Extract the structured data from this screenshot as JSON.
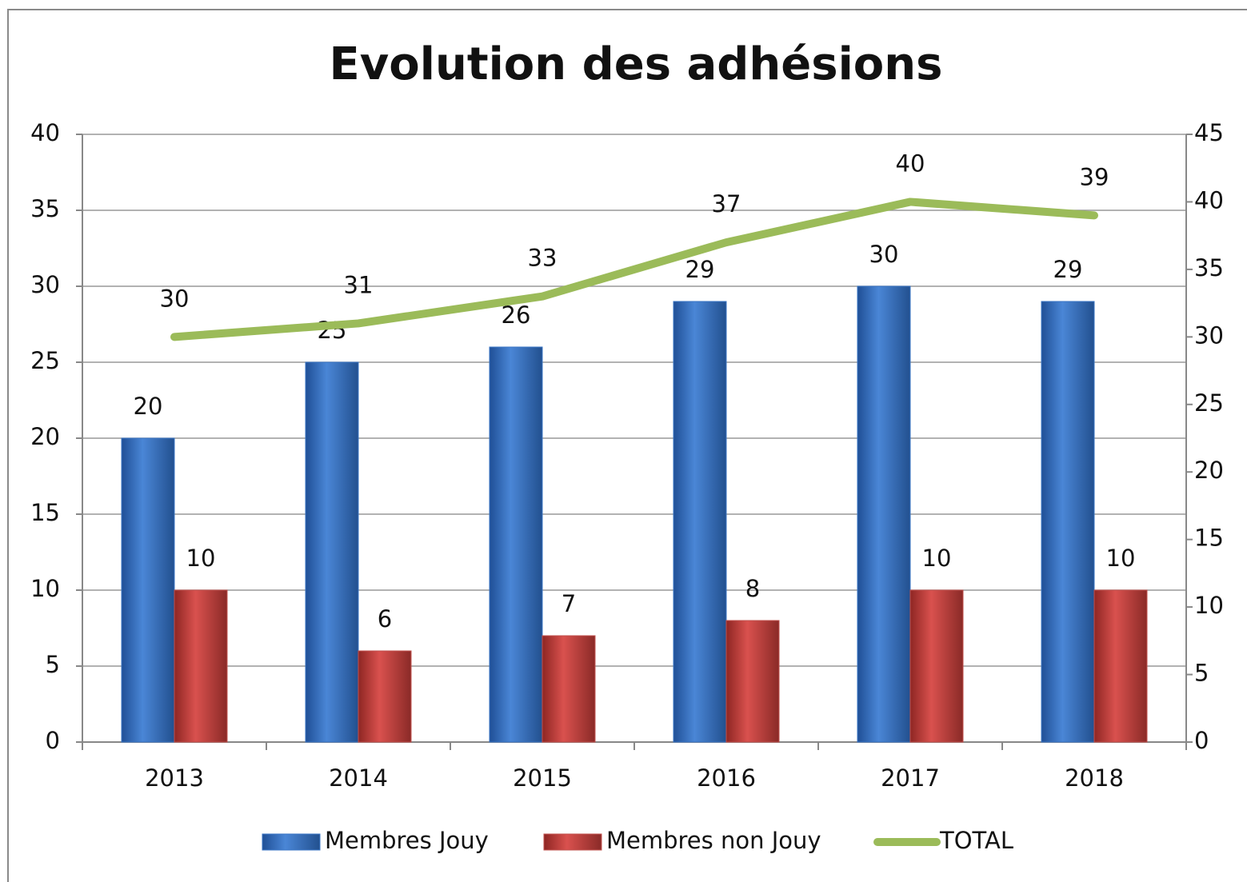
{
  "chart_data": {
    "type": "bar",
    "title": "Evolution des adhésions",
    "categories": [
      "2013",
      "2014",
      "2015",
      "2016",
      "2017",
      "2018"
    ],
    "series": [
      {
        "name": "Membres Jouy",
        "color": "#3a75c4",
        "values": [
          20,
          25,
          26,
          29,
          30,
          29
        ]
      },
      {
        "name": "Membres non Jouy",
        "color": "#c0504d",
        "values": [
          10,
          6,
          7,
          8,
          10,
          10
        ]
      },
      {
        "name": "TOTAL",
        "color": "#9bbb59",
        "type": "line",
        "axis": "y2",
        "values": [
          30,
          31,
          33,
          37,
          40,
          39
        ]
      }
    ],
    "ylim": [
      0,
      40
    ],
    "yticks": [
      0,
      5,
      10,
      15,
      20,
      25,
      30,
      35,
      40
    ],
    "y2lim": [
      0,
      45
    ],
    "y2ticks": [
      0,
      5,
      10,
      15,
      20,
      25,
      30,
      35,
      40,
      45
    ],
    "grid": true,
    "legend": "bottom"
  }
}
